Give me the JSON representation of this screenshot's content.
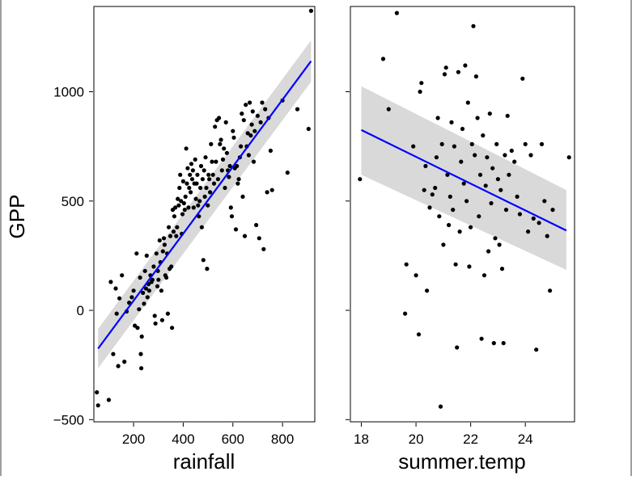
{
  "chart_data": [
    {
      "type": "scatter",
      "title": "",
      "xlabel": "rainfall",
      "ylabel": "GPP",
      "xlim": [
        40,
        930
      ],
      "ylim": [
        -510,
        1390
      ],
      "x_ticks": [
        200,
        400,
        600,
        800
      ],
      "y_ticks": [
        -500,
        0,
        500,
        1000
      ],
      "grid": false,
      "legend": "none",
      "point_color": "#000000",
      "fit": {
        "method": "linear",
        "color": "#0000ff",
        "ci_color": "#d9d9d9",
        "x": [
          57,
          915
        ],
        "y": [
          -175,
          1140
        ],
        "ci_lower": [
          -265,
          1045
        ],
        "ci_upper": [
          -85,
          1235
        ]
      },
      "points": [
        [
          52,
          -375
        ],
        [
          57,
          -435
        ],
        [
          100,
          -410
        ],
        [
          108,
          130
        ],
        [
          118,
          -200
        ],
        [
          128,
          100
        ],
        [
          132,
          -15
        ],
        [
          138,
          -255
        ],
        [
          143,
          55
        ],
        [
          153,
          160
        ],
        [
          163,
          -235
        ],
        [
          172,
          -5
        ],
        [
          182,
          35
        ],
        [
          193,
          60
        ],
        [
          200,
          90
        ],
        [
          205,
          -70
        ],
        [
          212,
          260
        ],
        [
          216,
          -80
        ],
        [
          222,
          5
        ],
        [
          226,
          150
        ],
        [
          229,
          -200
        ],
        [
          231,
          -265
        ],
        [
          233,
          -120
        ],
        [
          238,
          80
        ],
        [
          242,
          30
        ],
        [
          246,
          180
        ],
        [
          250,
          100
        ],
        [
          253,
          250
        ],
        [
          256,
          60
        ],
        [
          260,
          120
        ],
        [
          263,
          90
        ],
        [
          268,
          160
        ],
        [
          272,
          130
        ],
        [
          276,
          140
        ],
        [
          281,
          200
        ],
        [
          285,
          -25
        ],
        [
          288,
          -60
        ],
        [
          292,
          260
        ],
        [
          296,
          110
        ],
        [
          298,
          180
        ],
        [
          300,
          140
        ],
        [
          305,
          320
        ],
        [
          308,
          220
        ],
        [
          312,
          90
        ],
        [
          315,
          -45
        ],
        [
          318,
          270
        ],
        [
          322,
          330
        ],
        [
          325,
          300
        ],
        [
          328,
          160
        ],
        [
          332,
          150
        ],
        [
          335,
          260
        ],
        [
          338,
          -15
        ],
        [
          342,
          380
        ],
        [
          345,
          190
        ],
        [
          348,
          340
        ],
        [
          352,
          200
        ],
        [
          355,
          -80
        ],
        [
          358,
          460
        ],
        [
          361,
          360
        ],
        [
          364,
          430
        ],
        [
          368,
          470
        ],
        [
          372,
          340
        ],
        [
          375,
          380
        ],
        [
          378,
          510
        ],
        [
          382,
          480
        ],
        [
          385,
          560
        ],
        [
          388,
          620
        ],
        [
          391,
          500
        ],
        [
          394,
          350
        ],
        [
          397,
          440
        ],
        [
          400,
          590
        ],
        [
          403,
          490
        ],
        [
          406,
          460
        ],
        [
          409,
          520
        ],
        [
          412,
          740
        ],
        [
          415,
          580
        ],
        [
          418,
          650
        ],
        [
          421,
          470
        ],
        [
          424,
          560
        ],
        [
          427,
          620
        ],
        [
          430,
          540
        ],
        [
          433,
          670
        ],
        [
          436,
          600
        ],
        [
          439,
          640
        ],
        [
          442,
          470
        ],
        [
          445,
          580
        ],
        [
          448,
          690
        ],
        [
          451,
          510
        ],
        [
          454,
          580
        ],
        [
          457,
          620
        ],
        [
          460,
          480
        ],
        [
          463,
          430
        ],
        [
          466,
          500
        ],
        [
          469,
          560
        ],
        [
          472,
          660
        ],
        [
          475,
          380
        ],
        [
          478,
          600
        ],
        [
          481,
          230
        ],
        [
          484,
          640
        ],
        [
          487,
          520
        ],
        [
          490,
          700
        ],
        [
          493,
          560
        ],
        [
          496,
          190
        ],
        [
          499,
          480
        ],
        [
          502,
          620
        ],
        [
          505,
          600
        ],
        [
          508,
          540
        ],
        [
          512,
          760
        ],
        [
          516,
          680
        ],
        [
          520,
          620
        ],
        [
          524,
          580
        ],
        [
          528,
          840
        ],
        [
          532,
          680
        ],
        [
          536,
          870
        ],
        [
          540,
          600
        ],
        [
          544,
          880
        ],
        [
          548,
          760
        ],
        [
          552,
          780
        ],
        [
          556,
          640
        ],
        [
          560,
          690
        ],
        [
          564,
          740
        ],
        [
          568,
          560
        ],
        [
          572,
          860
        ],
        [
          576,
          720
        ],
        [
          580,
          640
        ],
        [
          584,
          610
        ],
        [
          588,
          660
        ],
        [
          592,
          470
        ],
        [
          596,
          430
        ],
        [
          600,
          820
        ],
        [
          604,
          790
        ],
        [
          608,
          650
        ],
        [
          612,
          370
        ],
        [
          616,
          660
        ],
        [
          620,
          580
        ],
        [
          624,
          600
        ],
        [
          628,
          700
        ],
        [
          632,
          750
        ],
        [
          636,
          900
        ],
        [
          640,
          520
        ],
        [
          644,
          870
        ],
        [
          648,
          340
        ],
        [
          652,
          940
        ],
        [
          656,
          750
        ],
        [
          660,
          810
        ],
        [
          664,
          710
        ],
        [
          668,
          950
        ],
        [
          672,
          800
        ],
        [
          676,
          850
        ],
        [
          680,
          910
        ],
        [
          684,
          680
        ],
        [
          688,
          820
        ],
        [
          694,
          390
        ],
        [
          700,
          890
        ],
        [
          706,
          330
        ],
        [
          712,
          860
        ],
        [
          718,
          950
        ],
        [
          724,
          280
        ],
        [
          730,
          920
        ],
        [
          738,
          540
        ],
        [
          744,
          880
        ],
        [
          752,
          730
        ],
        [
          758,
          550
        ],
        [
          800,
          960
        ],
        [
          820,
          630
        ],
        [
          860,
          920
        ],
        [
          905,
          830
        ],
        [
          915,
          1370
        ]
      ]
    },
    {
      "type": "scatter",
      "title": "",
      "xlabel": "summer.temp",
      "ylabel": "",
      "xlim": [
        17.6,
        25.8
      ],
      "ylim": [
        -510,
        1390
      ],
      "x_ticks": [
        18,
        20,
        22,
        24
      ],
      "y_ticks": [
        -500,
        0,
        500,
        1000
      ],
      "show_y_tick_labels": false,
      "grid": false,
      "legend": "none",
      "point_color": "#000000",
      "fit": {
        "method": "linear",
        "color": "#0000ff",
        "ci_color": "#d9d9d9",
        "x": [
          18.0,
          25.5
        ],
        "y": [
          825,
          365
        ],
        "ci_lower": [
          620,
          185
        ],
        "ci_upper": [
          1025,
          550
        ]
      },
      "points": [
        [
          17.95,
          600
        ],
        [
          18.8,
          1150
        ],
        [
          19.0,
          920
        ],
        [
          19.3,
          1360
        ],
        [
          19.6,
          -15
        ],
        [
          19.65,
          210
        ],
        [
          19.9,
          750
        ],
        [
          20.0,
          160
        ],
        [
          20.1,
          -110
        ],
        [
          20.15,
          1000
        ],
        [
          20.2,
          1040
        ],
        [
          20.3,
          550
        ],
        [
          20.35,
          660
        ],
        [
          20.4,
          90
        ],
        [
          20.5,
          470
        ],
        [
          20.6,
          530
        ],
        [
          20.7,
          560
        ],
        [
          20.75,
          700
        ],
        [
          20.8,
          880
        ],
        [
          20.85,
          430
        ],
        [
          20.9,
          -440
        ],
        [
          20.95,
          760
        ],
        [
          21.0,
          300
        ],
        [
          21.05,
          1080
        ],
        [
          21.1,
          1110
        ],
        [
          21.15,
          620
        ],
        [
          21.2,
          390
        ],
        [
          21.25,
          520
        ],
        [
          21.3,
          860
        ],
        [
          21.35,
          460
        ],
        [
          21.4,
          750
        ],
        [
          21.45,
          210
        ],
        [
          21.5,
          -170
        ],
        [
          21.55,
          1090
        ],
        [
          21.6,
          360
        ],
        [
          21.65,
          680
        ],
        [
          21.7,
          830
        ],
        [
          21.75,
          580
        ],
        [
          21.8,
          1120
        ],
        [
          21.85,
          500
        ],
        [
          21.9,
          950
        ],
        [
          21.95,
          200
        ],
        [
          22.0,
          380
        ],
        [
          22.05,
          760
        ],
        [
          22.1,
          1300
        ],
        [
          22.15,
          710
        ],
        [
          22.2,
          1070
        ],
        [
          22.25,
          880
        ],
        [
          22.3,
          430
        ],
        [
          22.35,
          620
        ],
        [
          22.4,
          -130
        ],
        [
          22.45,
          800
        ],
        [
          22.5,
          160
        ],
        [
          22.55,
          570
        ],
        [
          22.6,
          700
        ],
        [
          22.65,
          270
        ],
        [
          22.7,
          900
        ],
        [
          22.75,
          490
        ],
        [
          22.8,
          650
        ],
        [
          22.85,
          -150
        ],
        [
          22.9,
          330
        ],
        [
          22.95,
          760
        ],
        [
          23.0,
          600
        ],
        [
          23.05,
          300
        ],
        [
          23.1,
          550
        ],
        [
          23.15,
          190
        ],
        [
          23.2,
          -150
        ],
        [
          23.25,
          710
        ],
        [
          23.3,
          460
        ],
        [
          23.35,
          890
        ],
        [
          23.4,
          620
        ],
        [
          23.5,
          730
        ],
        [
          23.6,
          680
        ],
        [
          23.7,
          520
        ],
        [
          23.8,
          440
        ],
        [
          23.9,
          1060
        ],
        [
          24.0,
          760
        ],
        [
          24.1,
          360
        ],
        [
          24.2,
          710
        ],
        [
          24.3,
          420
        ],
        [
          24.4,
          -180
        ],
        [
          24.5,
          400
        ],
        [
          24.6,
          760
        ],
        [
          24.7,
          500
        ],
        [
          24.8,
          340
        ],
        [
          24.9,
          90
        ],
        [
          25.0,
          460
        ],
        [
          25.6,
          700
        ]
      ]
    }
  ]
}
